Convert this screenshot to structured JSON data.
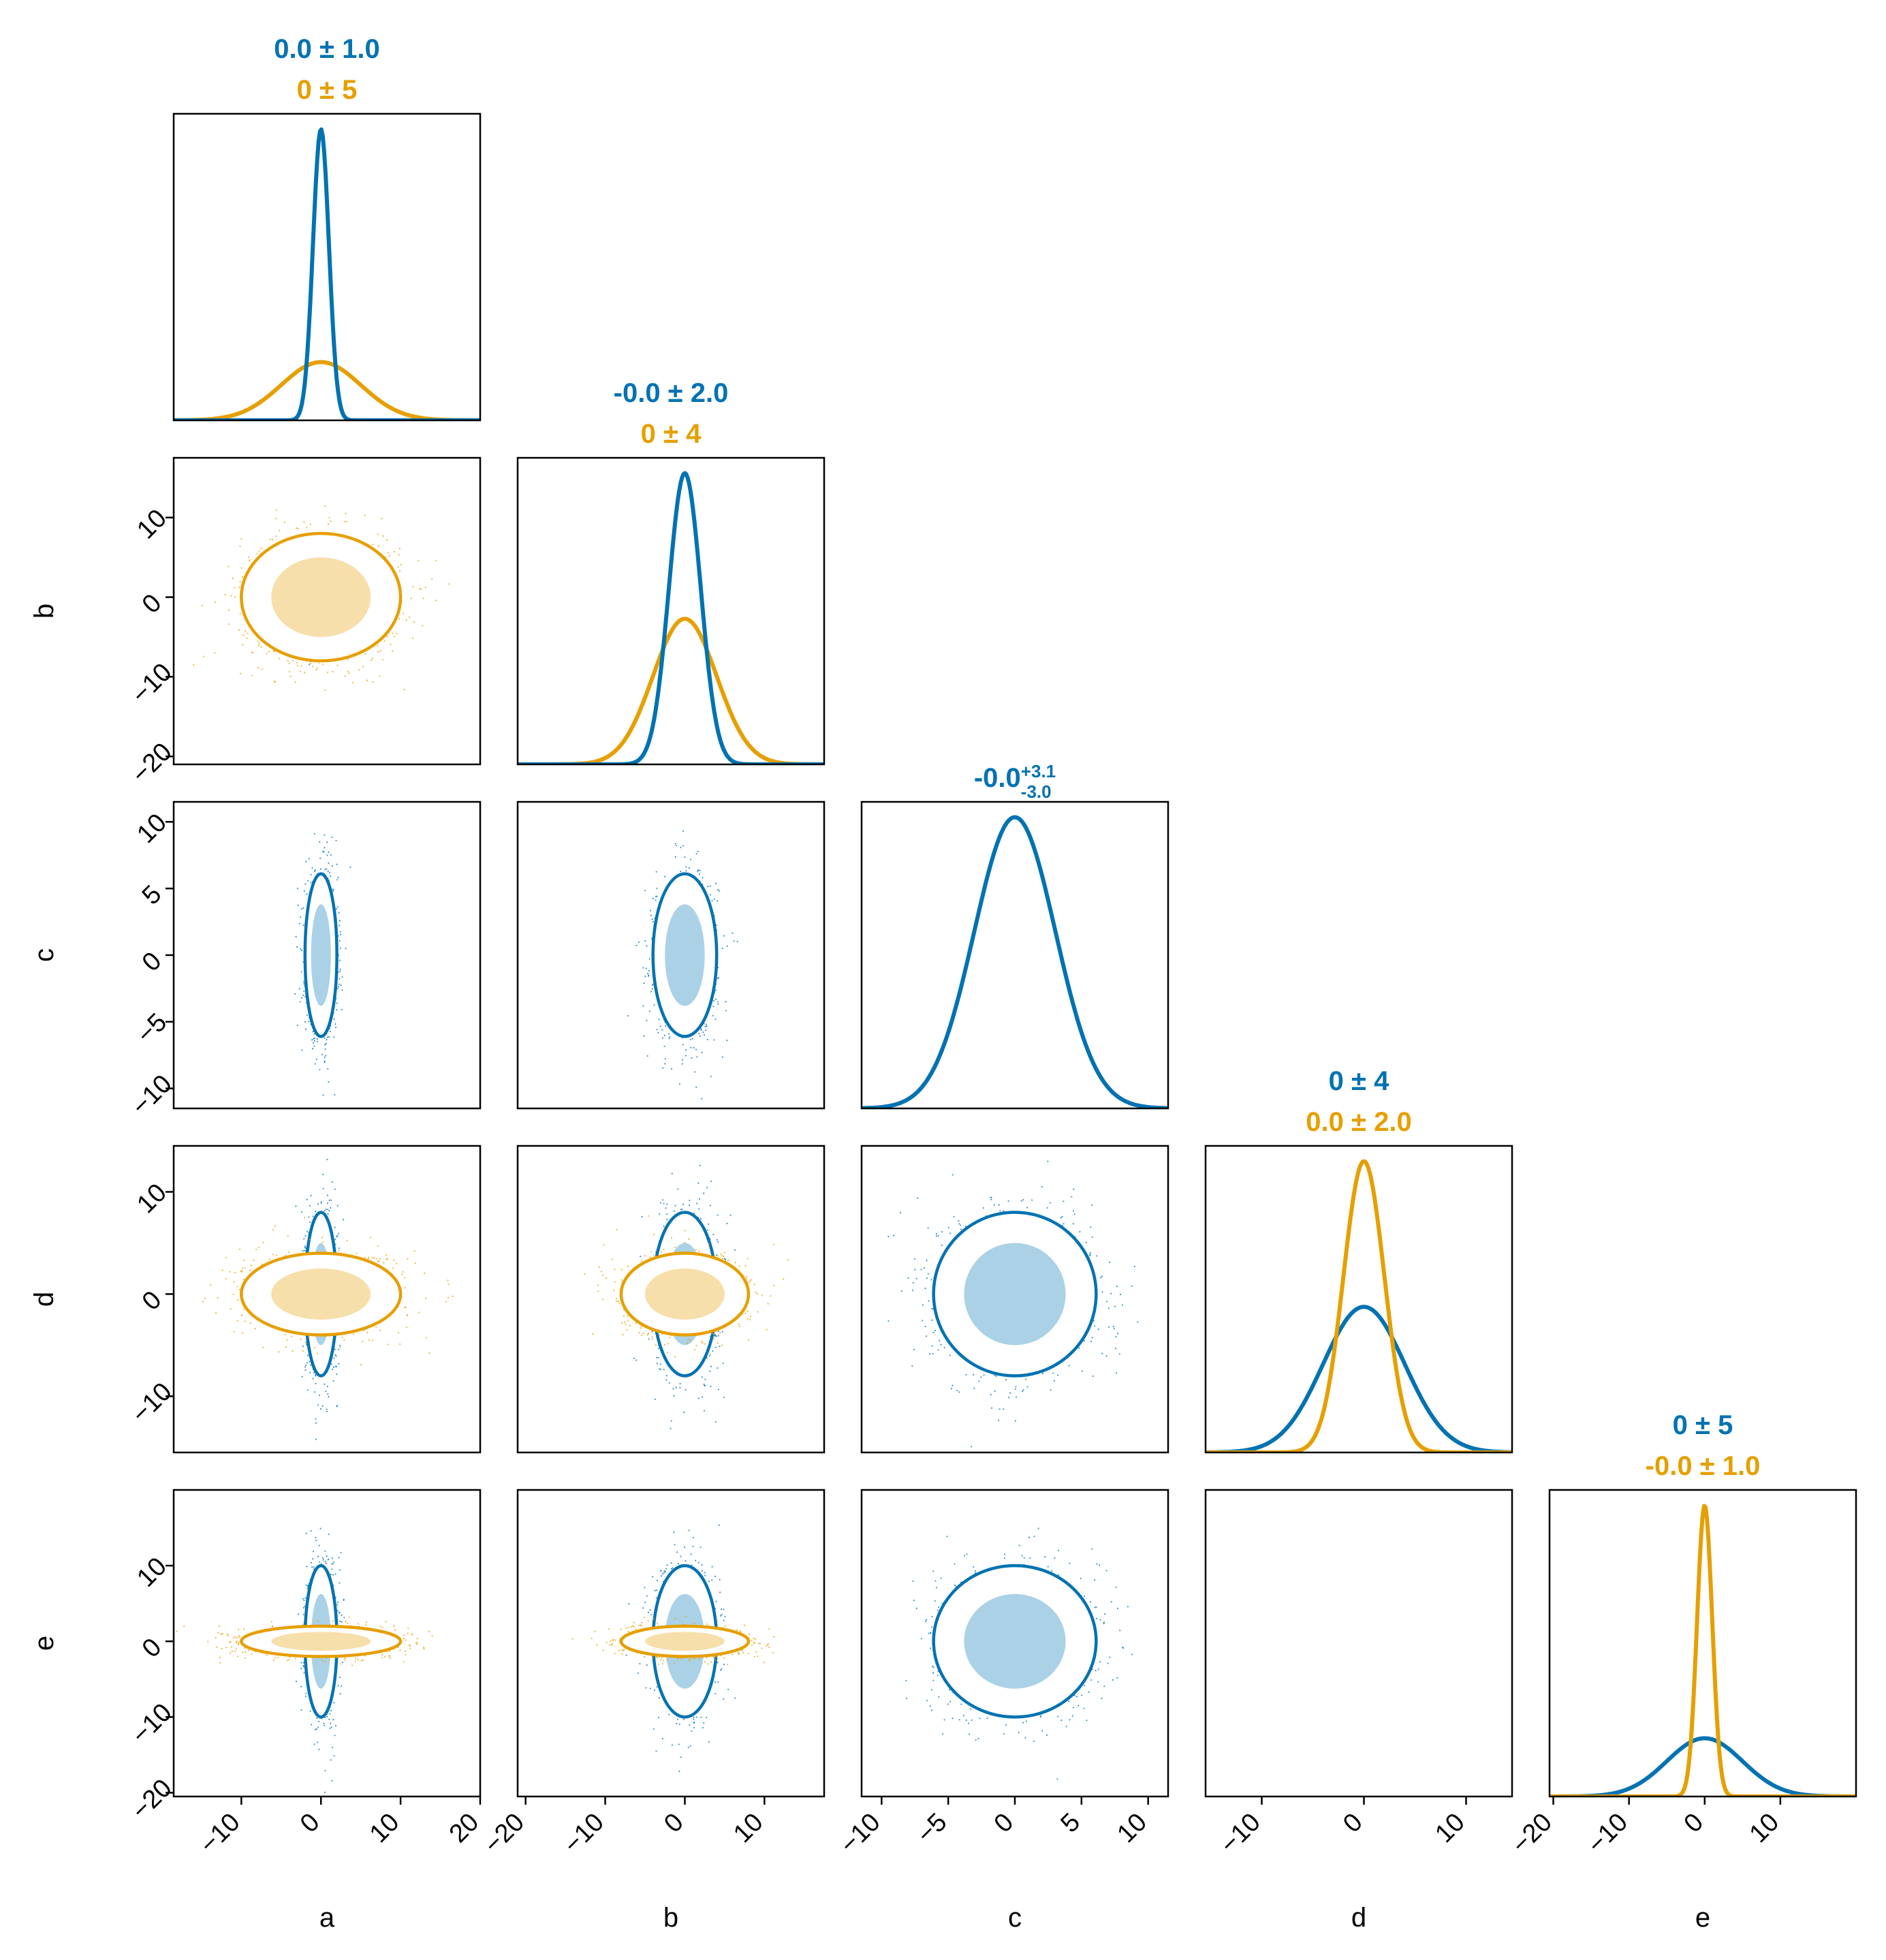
{
  "chart_data": {
    "type": "corner",
    "variables": [
      "a",
      "b",
      "c",
      "d",
      "e"
    ],
    "ranges": {
      "a": [
        -18.5,
        20.0
      ],
      "b": [
        -21.0,
        17.5
      ],
      "c": [
        -11.5,
        11.5
      ],
      "d": [
        -15.5,
        14.5
      ],
      "e": [
        -20.5,
        20.0
      ]
    },
    "ticks": {
      "a": [
        -10,
        0,
        10,
        20
      ],
      "b": [
        -20,
        -10,
        0,
        10
      ],
      "c": [
        -10,
        -5,
        0,
        5,
        10
      ],
      "d": [
        -10,
        0,
        10
      ],
      "e": [
        -20,
        -10,
        0,
        10
      ]
    },
    "colors": {
      "blue": "#0072B2",
      "orange": "#E69F00"
    },
    "series": [
      {
        "color": "#0072B2",
        "sigma": {
          "a": 1.0,
          "b": 2.0,
          "c": 3.05,
          "d": 4.0,
          "e": 5.0
        },
        "mean": {
          "a": 0,
          "b": 0,
          "c": 0,
          "d": 0,
          "e": 0
        },
        "summaries": {
          "a": {
            "text": "0.0 ± 1.0"
          },
          "b": {
            "text": "-0.0 ± 2.0"
          },
          "c": {
            "main": "-0.0",
            "plus": "+3.1",
            "minus": "-3.0"
          },
          "d": {
            "text": "0 ± 4"
          },
          "e": {
            "text": "0 ± 5"
          }
        }
      },
      {
        "color": "#E69F00",
        "sigma": {
          "a": 5.0,
          "b": 4.0,
          "d": 2.0,
          "e": 1.0
        },
        "mean": {
          "a": 0,
          "b": 0,
          "d": 0,
          "e": 0
        },
        "summaries": {
          "a": {
            "text": "0 ± 5"
          },
          "b": {
            "text": "0 ± 4"
          },
          "d": {
            "text": "0.0 ± 2.0"
          },
          "e": {
            "text": "-0.0 ± 1.0"
          }
        }
      }
    ]
  }
}
